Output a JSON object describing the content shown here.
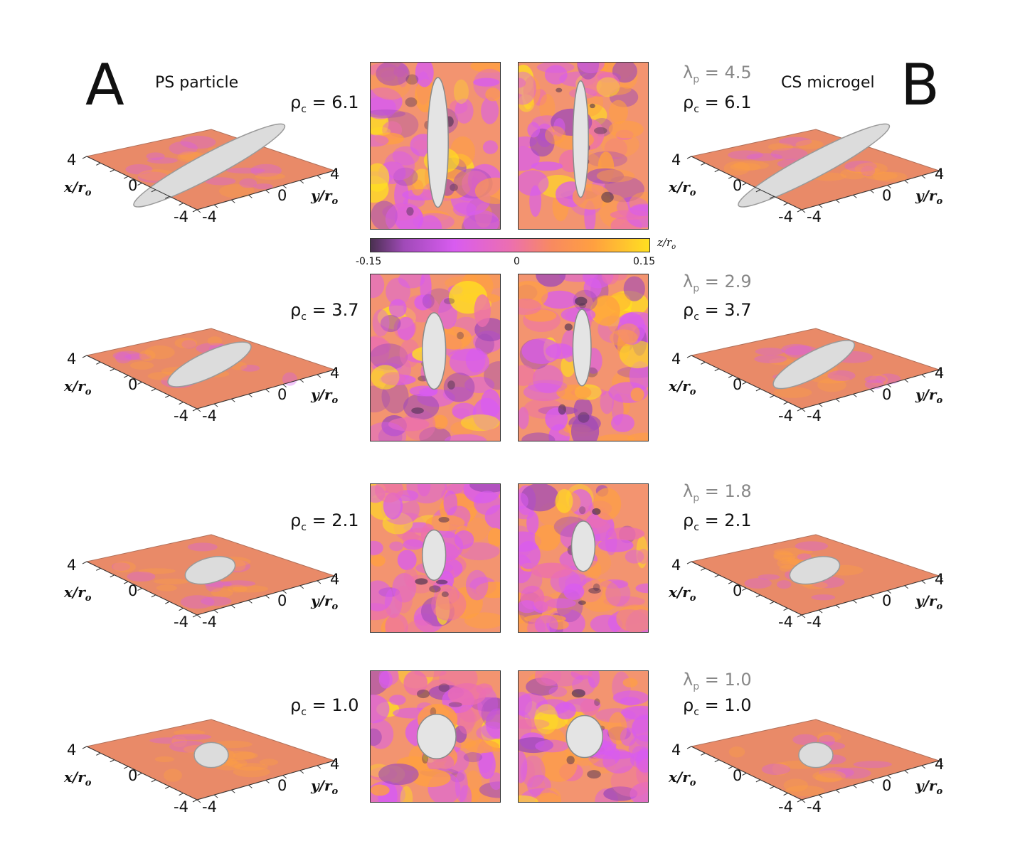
{
  "panels": {
    "A": {
      "letter": "A",
      "title": "PS particle"
    },
    "B": {
      "letter": "B",
      "title": "CS microgel"
    }
  },
  "rows": [
    {
      "rho_prefix": "ρ",
      "rho_sub": "c",
      "rho_value": "= 6.1",
      "lambda_prefix": "λ",
      "lambda_sub": "p",
      "lambda_value": "= 4.5"
    },
    {
      "rho_prefix": "ρ",
      "rho_sub": "c",
      "rho_value": "= 3.7",
      "lambda_prefix": "λ",
      "lambda_sub": "p",
      "lambda_value": "= 2.9"
    },
    {
      "rho_prefix": "ρ",
      "rho_sub": "c",
      "rho_value": "= 2.1",
      "lambda_prefix": "λ",
      "lambda_sub": "p",
      "lambda_value": "= 1.8"
    },
    {
      "rho_prefix": "ρ",
      "rho_sub": "c",
      "rho_value": "= 1.0",
      "lambda_prefix": "λ",
      "lambda_sub": "p",
      "lambda_value": "= 1.0"
    }
  ],
  "axes3d": {
    "tick_pos": "4",
    "tick_zero": "0",
    "tick_neg": "-4",
    "x_label": "x/r",
    "y_label": "y/r",
    "label_sub": "o"
  },
  "colorbar": {
    "min_label": "-0.15",
    "mid_label": "0",
    "max_label": "0.15",
    "unit": "z/r",
    "unit_sub": "o",
    "colors": [
      "#4a3050",
      "#a04ab8",
      "#d85cf0",
      "#ec6fb0",
      "#f88a60",
      "#ffa040",
      "#ffe020"
    ]
  }
}
